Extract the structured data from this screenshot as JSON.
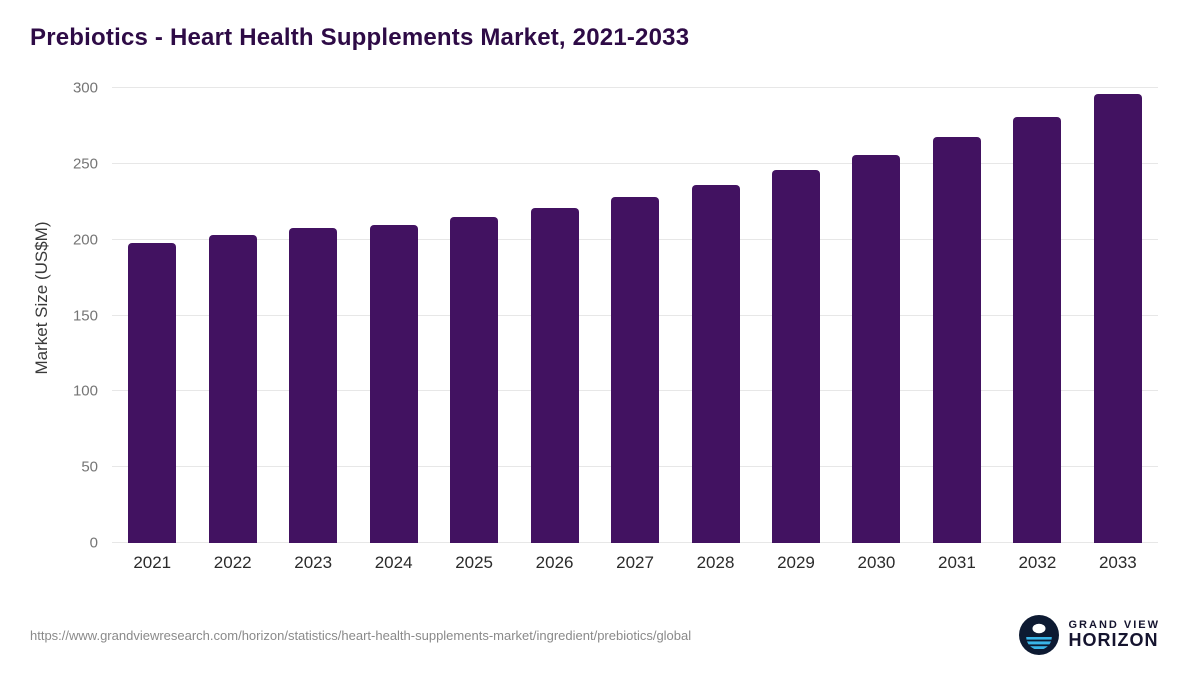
{
  "header": {
    "title": "Prebiotics - Heart Health Supplements Market, 2021-2033"
  },
  "chart_data": {
    "type": "bar",
    "title": "Prebiotics - Heart Health Supplements Market, 2021-2033",
    "categories": [
      "2021",
      "2022",
      "2023",
      "2024",
      "2025",
      "2026",
      "2027",
      "2028",
      "2029",
      "2030",
      "2031",
      "2032",
      "2033"
    ],
    "values": [
      198,
      203,
      208,
      210,
      215,
      221,
      228,
      236,
      246,
      256,
      268,
      281,
      296
    ],
    "xlabel": "",
    "ylabel": "Market Size (US$M)",
    "ylim": [
      0,
      300
    ],
    "yticks": [
      0,
      50,
      100,
      150,
      200,
      250,
      300
    ],
    "grid": true,
    "legend": false,
    "bar_color": "#421261"
  },
  "colors": {
    "title": "#2e0b46",
    "bar": "#421261",
    "gridline": "#e7e7e7",
    "tick_label": "#757575",
    "logo_navy": "#0d1a32",
    "logo_blue": "#39b5e8"
  },
  "footer": {
    "source_url": "https://www.grandviewresearch.com/horizon/statistics/heart-health-supplements-market/ingredient/prebiotics/global",
    "brand_top": "GRAND VIEW",
    "brand_bottom": "HORIZON"
  }
}
